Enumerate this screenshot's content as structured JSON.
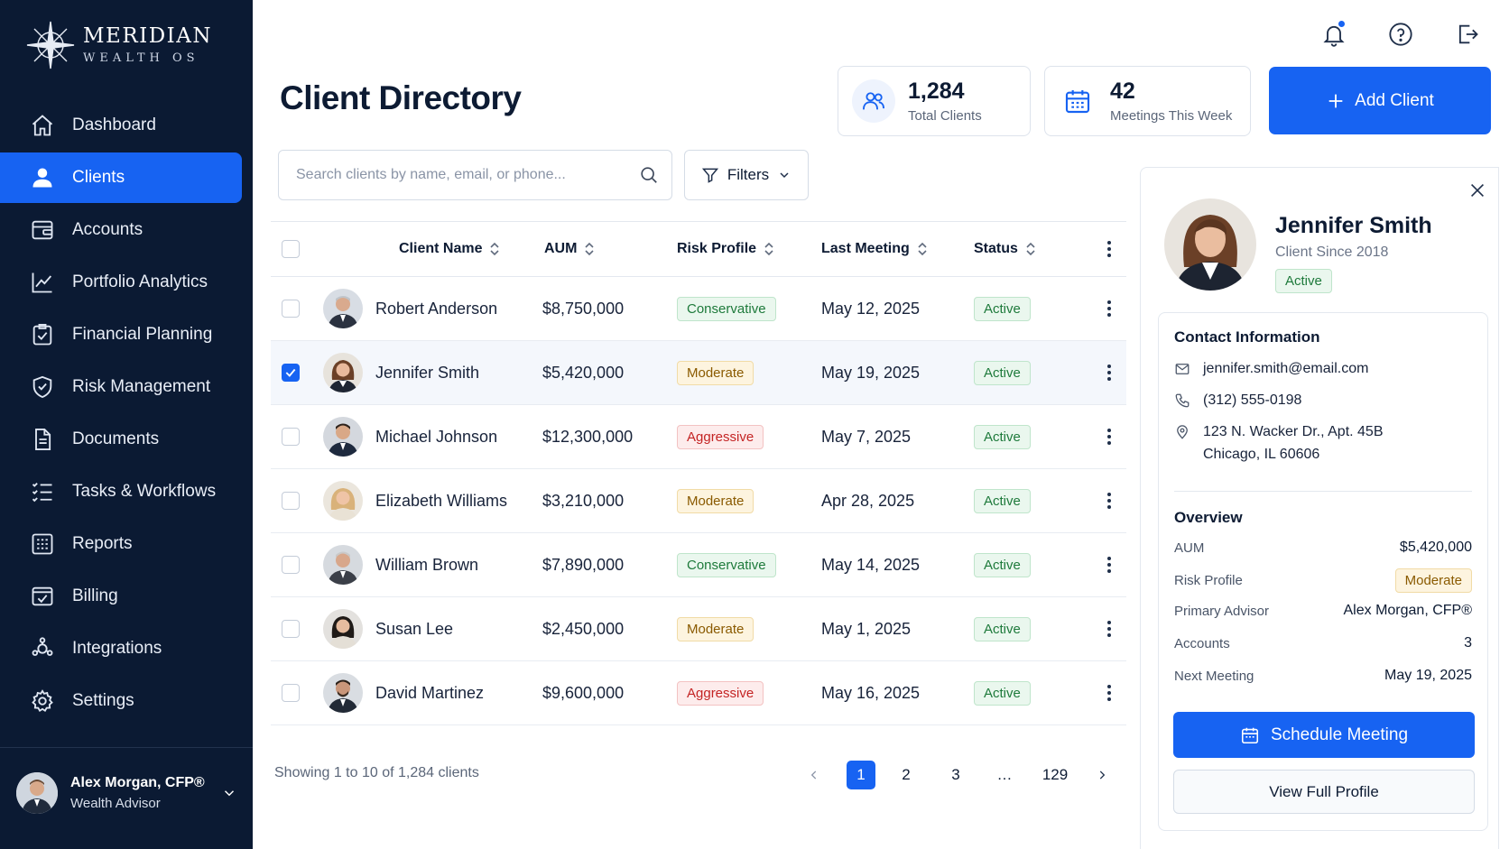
{
  "brand": {
    "name": "MERIDIAN",
    "sub": "WEALTH OS"
  },
  "nav": [
    {
      "label": "Dashboard",
      "icon": "home-icon",
      "active": false
    },
    {
      "label": "Clients",
      "icon": "user-icon",
      "active": true
    },
    {
      "label": "Accounts",
      "icon": "wallet-icon",
      "active": false
    },
    {
      "label": "Portfolio Analytics",
      "icon": "chart-line-icon",
      "active": false
    },
    {
      "label": "Financial Planning",
      "icon": "clipboard-check-icon",
      "active": false
    },
    {
      "label": "Risk Management",
      "icon": "shield-check-icon",
      "active": false
    },
    {
      "label": "Documents",
      "icon": "document-icon",
      "active": false
    },
    {
      "label": "Tasks & Workflows",
      "icon": "task-list-icon",
      "active": false
    },
    {
      "label": "Reports",
      "icon": "reports-grid-icon",
      "active": false
    },
    {
      "label": "Billing",
      "icon": "billing-icon",
      "active": false
    },
    {
      "label": "Integrations",
      "icon": "integrations-icon",
      "active": false
    },
    {
      "label": "Settings",
      "icon": "gear-icon",
      "active": false
    }
  ],
  "user": {
    "name": "Alex Morgan, CFP®",
    "role": "Wealth Advisor"
  },
  "page": {
    "title": "Client Directory"
  },
  "stats": [
    {
      "value": "1,284",
      "label": "Total Clients",
      "icon": "users-icon"
    },
    {
      "value": "42",
      "label": "Meetings This Week",
      "icon": "calendar-icon"
    }
  ],
  "add_client_label": "Add Client",
  "search": {
    "placeholder": "Search clients by name, email, or phone..."
  },
  "filters_label": "Filters",
  "table": {
    "headers": {
      "name": "Client Name",
      "aum": "AUM",
      "risk": "Risk Profile",
      "meeting": "Last Meeting",
      "status": "Status"
    },
    "rows": [
      {
        "name": "Robert Anderson",
        "aum": "$8,750,000",
        "risk": "Conservative",
        "meeting": "May 12, 2025",
        "status": "Active",
        "selected": false
      },
      {
        "name": "Jennifer Smith",
        "aum": "$5,420,000",
        "risk": "Moderate",
        "meeting": "May 19, 2025",
        "status": "Active",
        "selected": true
      },
      {
        "name": "Michael Johnson",
        "aum": "$12,300,000",
        "risk": "Aggressive",
        "meeting": "May 7, 2025",
        "status": "Active",
        "selected": false
      },
      {
        "name": "Elizabeth Williams",
        "aum": "$3,210,000",
        "risk": "Moderate",
        "meeting": "Apr 28, 2025",
        "status": "Active",
        "selected": false
      },
      {
        "name": "William Brown",
        "aum": "$7,890,000",
        "risk": "Conservative",
        "meeting": "May 14, 2025",
        "status": "Active",
        "selected": false
      },
      {
        "name": "Susan Lee",
        "aum": "$2,450,000",
        "risk": "Moderate",
        "meeting": "May 1, 2025",
        "status": "Active",
        "selected": false
      },
      {
        "name": "David Martinez",
        "aum": "$9,600,000",
        "risk": "Aggressive",
        "meeting": "May 16, 2025",
        "status": "Active",
        "selected": false
      }
    ]
  },
  "pagination": {
    "summary": "Showing 1 to 10 of 1,284 clients",
    "pages": [
      "1",
      "2",
      "3",
      "…",
      "129"
    ],
    "current": "1"
  },
  "detail": {
    "name": "Jennifer Smith",
    "since": "Client Since 2018",
    "status": "Active",
    "contact_title": "Contact Information",
    "email": "jennifer.smith@email.com",
    "phone": "(312) 555-0198",
    "address_line1": "123 N. Wacker Dr., Apt. 45B",
    "address_line2": "Chicago, IL 60606",
    "overview_title": "Overview",
    "overview": {
      "aum_label": "AUM",
      "aum": "$5,420,000",
      "risk_label": "Risk Profile",
      "risk": "Moderate",
      "advisor_label": "Primary Advisor",
      "advisor": "Alex Morgan, CFP®",
      "accounts_label": "Accounts",
      "accounts": "3",
      "next_label": "Next Meeting",
      "next": "May 19, 2025"
    },
    "schedule_label": "Schedule Meeting",
    "view_label": "View Full Profile"
  },
  "colors": {
    "sidebar_bg": "#0b1a33",
    "accent": "#1763f2",
    "conservative": "#1e7a3b",
    "moderate": "#8a5a00",
    "aggressive": "#c42424"
  }
}
